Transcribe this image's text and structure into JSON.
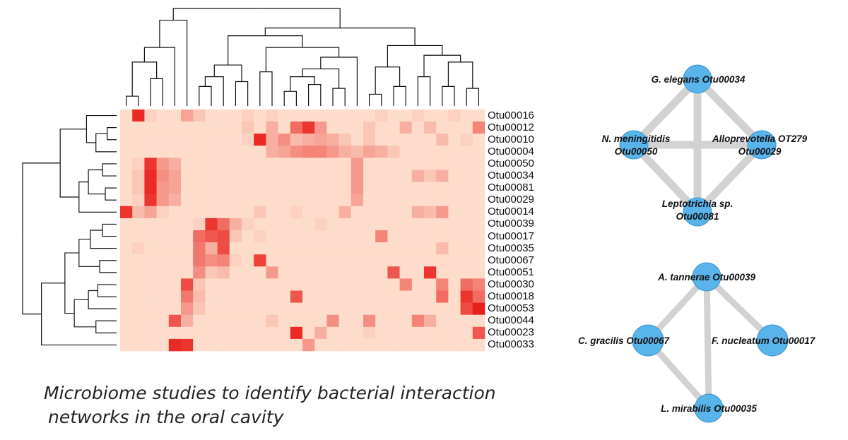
{
  "chart_data": [
    {
      "type": "heatmap",
      "rows": [
        "Otu00016",
        "Otu00012",
        "Otu00010",
        "Otu00004",
        "Otu00050",
        "Otu00034",
        "Otu00081",
        "Otu00029",
        "Otu00014",
        "Otu00039",
        "Otu00017",
        "Otu00035",
        "Otu00067",
        "Otu00051",
        "Otu00030",
        "Otu00018",
        "Otu00053",
        "Otu00044",
        "Otu00023",
        "Otu00033"
      ],
      "n_columns": 30,
      "value_range": [
        0,
        1
      ],
      "color_low": "#fff2e0",
      "color_high": "#e8140f",
      "values": [
        [
          0.1,
          0.9,
          0.15,
          0.1,
          0.1,
          0.35,
          0.2,
          0.1,
          0.1,
          0.1,
          0.15,
          0.1,
          0.15,
          0.1,
          0.1,
          0.1,
          0.1,
          0.1,
          0.1,
          0.1,
          0.1,
          0.15,
          0.1,
          0.1,
          0.15,
          0.1,
          0.1,
          0.15,
          0.1,
          0.1
        ],
        [
          0.1,
          0.1,
          0.1,
          0.1,
          0.1,
          0.1,
          0.1,
          0.1,
          0.1,
          0.1,
          0.2,
          0.1,
          0.3,
          0.1,
          0.6,
          0.85,
          0.4,
          0.1,
          0.1,
          0.1,
          0.2,
          0.1,
          0.1,
          0.3,
          0.1,
          0.25,
          0.1,
          0.1,
          0.1,
          0.5
        ],
        [
          0.1,
          0.1,
          0.1,
          0.1,
          0.1,
          0.1,
          0.1,
          0.1,
          0.1,
          0.1,
          0.15,
          0.9,
          0.3,
          0.45,
          0.25,
          0.3,
          0.35,
          0.3,
          0.2,
          0.1,
          0.2,
          0.1,
          0.1,
          0.1,
          0.1,
          0.1,
          0.25,
          0.1,
          0.15,
          0.1
        ],
        [
          0.1,
          0.1,
          0.1,
          0.1,
          0.1,
          0.1,
          0.1,
          0.1,
          0.1,
          0.1,
          0.1,
          0.1,
          0.3,
          0.35,
          0.45,
          0.5,
          0.5,
          0.4,
          0.3,
          0.25,
          0.35,
          0.3,
          0.2,
          0.1,
          0.1,
          0.1,
          0.1,
          0.1,
          0.1,
          0.1
        ],
        [
          0.1,
          0.15,
          0.85,
          0.4,
          0.3,
          0.1,
          0.1,
          0.1,
          0.1,
          0.1,
          0.1,
          0.1,
          0.1,
          0.1,
          0.1,
          0.1,
          0.1,
          0.1,
          0.1,
          0.4,
          0.1,
          0.1,
          0.1,
          0.1,
          0.1,
          0.1,
          0.1,
          0.1,
          0.1,
          0.1
        ],
        [
          0.1,
          0.2,
          0.9,
          0.45,
          0.35,
          0.1,
          0.1,
          0.1,
          0.1,
          0.1,
          0.1,
          0.1,
          0.1,
          0.1,
          0.1,
          0.1,
          0.1,
          0.1,
          0.1,
          0.4,
          0.1,
          0.1,
          0.1,
          0.1,
          0.3,
          0.2,
          0.3,
          0.1,
          0.1,
          0.1
        ],
        [
          0.1,
          0.2,
          0.9,
          0.4,
          0.35,
          0.1,
          0.1,
          0.1,
          0.1,
          0.1,
          0.1,
          0.1,
          0.1,
          0.1,
          0.1,
          0.1,
          0.1,
          0.1,
          0.1,
          0.4,
          0.1,
          0.1,
          0.1,
          0.1,
          0.1,
          0.1,
          0.1,
          0.1,
          0.1,
          0.1
        ],
        [
          0.1,
          0.15,
          0.85,
          0.4,
          0.3,
          0.1,
          0.1,
          0.1,
          0.1,
          0.1,
          0.1,
          0.1,
          0.1,
          0.1,
          0.1,
          0.1,
          0.1,
          0.1,
          0.1,
          0.35,
          0.1,
          0.1,
          0.1,
          0.1,
          0.1,
          0.1,
          0.1,
          0.1,
          0.1,
          0.1
        ],
        [
          0.85,
          0.25,
          0.35,
          0.15,
          0.1,
          0.1,
          0.1,
          0.1,
          0.1,
          0.1,
          0.1,
          0.2,
          0.1,
          0.1,
          0.15,
          0.1,
          0.1,
          0.1,
          0.3,
          0.1,
          0.1,
          0.1,
          0.1,
          0.1,
          0.3,
          0.25,
          0.4,
          0.1,
          0.1,
          0.1
        ],
        [
          0.1,
          0.1,
          0.1,
          0.1,
          0.1,
          0.1,
          0.15,
          0.85,
          0.6,
          0.3,
          0.15,
          0.1,
          0.1,
          0.1,
          0.1,
          0.1,
          0.15,
          0.1,
          0.1,
          0.1,
          0.1,
          0.1,
          0.1,
          0.1,
          0.1,
          0.1,
          0.1,
          0.1,
          0.1,
          0.1
        ],
        [
          0.1,
          0.1,
          0.1,
          0.1,
          0.1,
          0.1,
          0.6,
          0.7,
          0.75,
          0.2,
          0.1,
          0.15,
          0.1,
          0.1,
          0.1,
          0.1,
          0.1,
          0.1,
          0.1,
          0.1,
          0.1,
          0.5,
          0.1,
          0.1,
          0.1,
          0.1,
          0.1,
          0.1,
          0.1,
          0.1
        ],
        [
          0.1,
          0.15,
          0.1,
          0.1,
          0.1,
          0.1,
          0.55,
          0.3,
          0.75,
          0.1,
          0.1,
          0.1,
          0.1,
          0.1,
          0.1,
          0.1,
          0.1,
          0.1,
          0.1,
          0.1,
          0.1,
          0.1,
          0.1,
          0.1,
          0.1,
          0.1,
          0.25,
          0.1,
          0.1,
          0.1
        ],
        [
          0.1,
          0.1,
          0.1,
          0.1,
          0.1,
          0.1,
          0.55,
          0.45,
          0.5,
          0.15,
          0.1,
          0.8,
          0.1,
          0.1,
          0.1,
          0.1,
          0.1,
          0.1,
          0.1,
          0.1,
          0.1,
          0.1,
          0.1,
          0.1,
          0.1,
          0.1,
          0.1,
          0.1,
          0.1,
          0.1
        ],
        [
          0.1,
          0.1,
          0.1,
          0.1,
          0.1,
          0.1,
          0.45,
          0.2,
          0.25,
          0.1,
          0.1,
          0.1,
          0.4,
          0.1,
          0.1,
          0.1,
          0.1,
          0.1,
          0.1,
          0.1,
          0.1,
          0.1,
          0.7,
          0.1,
          0.1,
          0.85,
          0.1,
          0.1,
          0.1,
          0.1
        ],
        [
          0.1,
          0.1,
          0.1,
          0.1,
          0.1,
          0.75,
          0.2,
          0.1,
          0.1,
          0.1,
          0.1,
          0.1,
          0.1,
          0.1,
          0.1,
          0.1,
          0.1,
          0.1,
          0.1,
          0.1,
          0.1,
          0.1,
          0.1,
          0.5,
          0.1,
          0.1,
          0.5,
          0.1,
          0.6,
          0.5
        ],
        [
          0.1,
          0.1,
          0.1,
          0.1,
          0.1,
          0.55,
          0.25,
          0.1,
          0.1,
          0.1,
          0.1,
          0.1,
          0.1,
          0.1,
          0.7,
          0.1,
          0.1,
          0.1,
          0.1,
          0.1,
          0.1,
          0.1,
          0.1,
          0.1,
          0.1,
          0.1,
          0.6,
          0.1,
          0.85,
          0.6
        ],
        [
          0.1,
          0.1,
          0.1,
          0.1,
          0.1,
          0.4,
          0.2,
          0.1,
          0.1,
          0.1,
          0.1,
          0.1,
          0.1,
          0.1,
          0.1,
          0.1,
          0.1,
          0.1,
          0.1,
          0.1,
          0.1,
          0.1,
          0.1,
          0.1,
          0.1,
          0.1,
          0.1,
          0.1,
          0.75,
          0.95
        ],
        [
          0.1,
          0.1,
          0.1,
          0.1,
          0.7,
          0.3,
          0.1,
          0.1,
          0.1,
          0.1,
          0.1,
          0.1,
          0.2,
          0.1,
          0.1,
          0.1,
          0.1,
          0.45,
          0.1,
          0.1,
          0.45,
          0.1,
          0.1,
          0.1,
          0.5,
          0.3,
          0.1,
          0.1,
          0.1,
          0.1
        ],
        [
          0.1,
          0.1,
          0.1,
          0.1,
          0.1,
          0.1,
          0.1,
          0.1,
          0.1,
          0.1,
          0.1,
          0.1,
          0.1,
          0.1,
          0.9,
          0.1,
          0.3,
          0.1,
          0.1,
          0.1,
          0.15,
          0.1,
          0.1,
          0.1,
          0.1,
          0.1,
          0.1,
          0.1,
          0.1,
          0.7
        ],
        [
          0.1,
          0.1,
          0.1,
          0.1,
          0.9,
          0.85,
          0.1,
          0.1,
          0.1,
          0.1,
          0.1,
          0.1,
          0.1,
          0.1,
          0.1,
          0.4,
          0.1,
          0.1,
          0.1,
          0.1,
          0.1,
          0.1,
          0.1,
          0.1,
          0.1,
          0.1,
          0.1,
          0.1,
          0.1,
          0.1
        ]
      ]
    },
    {
      "type": "network",
      "nodes": [
        {
          "id": "n1",
          "label": "G. elegans Otu00034"
        },
        {
          "id": "n2",
          "label": "N. meningitidis Otu00050"
        },
        {
          "id": "n3",
          "label": "Alloprevotella OT279 Otu00029"
        },
        {
          "id": "n4",
          "label": "Leptotrichia sp. Otu00081"
        }
      ],
      "edges": [
        [
          "n1",
          "n2"
        ],
        [
          "n1",
          "n3"
        ],
        [
          "n1",
          "n4"
        ],
        [
          "n2",
          "n3"
        ],
        [
          "n2",
          "n4"
        ],
        [
          "n3",
          "n4"
        ]
      ]
    },
    {
      "type": "network",
      "nodes": [
        {
          "id": "m1",
          "label": "A. tannerae Otu00039"
        },
        {
          "id": "m2",
          "label": "C. gracilis Otu00067"
        },
        {
          "id": "m3",
          "label": "F. nucleatum Otu00017"
        },
        {
          "id": "m4",
          "label": "L. mirabilis Otu00035"
        }
      ],
      "edges": [
        [
          "m1",
          "m2"
        ],
        [
          "m1",
          "m3"
        ],
        [
          "m1",
          "m4"
        ],
        [
          "m2",
          "m4"
        ]
      ]
    }
  ],
  "network_labels": {
    "n1": "G. elegans Otu00034",
    "n2_a": "N. meningitidis",
    "n2_b": "Otu00050",
    "n3_a": "Alloprevotella OT279",
    "n3_b": "Otu00029",
    "n4_a": "Leptotrichia sp.",
    "n4_b": "Otu00081",
    "m1": "A. tannerae Otu00039",
    "m2": "C. gracilis Otu00067",
    "m3": "F. nucleatum Otu00017",
    "m4": "L. mirabilis Otu00035"
  },
  "colors": {
    "node_fill": "#5ab4ec",
    "edge": "#d2d2d2",
    "dendrogram": "#111111"
  },
  "caption": {
    "line1": "Microbiome studies to identify bacterial interaction",
    "line2": "networks in the oral cavity"
  }
}
